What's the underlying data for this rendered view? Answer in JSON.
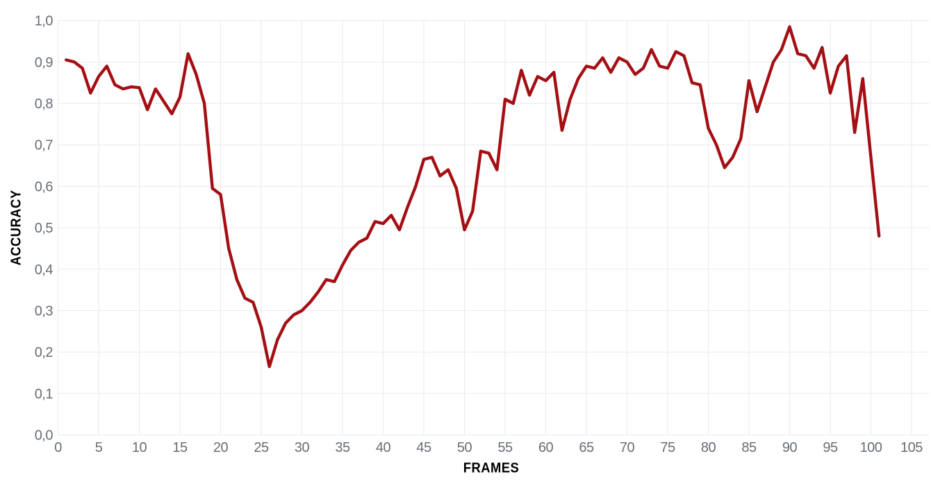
{
  "chart_data": {
    "type": "line",
    "title": "",
    "xlabel": "FRAMES",
    "ylabel": "ACCURACY",
    "xlim": [
      0,
      105
    ],
    "ylim": [
      0.0,
      1.0
    ],
    "grid": true,
    "legend": "none",
    "decimal_separator": ",",
    "x_ticks": [
      0,
      5,
      10,
      15,
      20,
      25,
      30,
      35,
      40,
      45,
      50,
      55,
      60,
      65,
      70,
      75,
      80,
      85,
      90,
      95,
      100,
      105
    ],
    "y_tick_values": [
      0.0,
      0.1,
      0.2,
      0.3,
      0.4,
      0.5,
      0.6,
      0.7,
      0.8,
      0.9,
      1.0
    ],
    "y_tick_labels": [
      "0,0",
      "0,1",
      "0,2",
      "0,3",
      "0,4",
      "0,5",
      "0,6",
      "0,7",
      "0,8",
      "0,9",
      "1,0"
    ],
    "x": [
      1,
      2,
      3,
      4,
      5,
      6,
      7,
      8,
      9,
      10,
      11,
      12,
      13,
      14,
      15,
      16,
      17,
      18,
      19,
      20,
      21,
      22,
      23,
      24,
      25,
      26,
      27,
      28,
      29,
      30,
      31,
      32,
      33,
      34,
      35,
      36,
      37,
      38,
      39,
      40,
      41,
      42,
      43,
      44,
      45,
      46,
      47,
      48,
      49,
      50,
      51,
      52,
      53,
      54,
      55,
      56,
      57,
      58,
      59,
      60,
      61,
      62,
      63,
      64,
      65,
      66,
      67,
      68,
      69,
      70,
      71,
      72,
      73,
      74,
      75,
      76,
      77,
      78,
      79,
      80,
      81,
      82,
      83,
      84,
      85,
      86,
      87,
      88,
      89,
      90,
      91,
      92,
      93,
      94,
      95,
      96,
      97,
      98,
      99,
      100,
      101
    ],
    "values": [
      0.905,
      0.9,
      0.885,
      0.825,
      0.865,
      0.89,
      0.845,
      0.835,
      0.84,
      0.838,
      0.785,
      0.835,
      0.805,
      0.775,
      0.815,
      0.92,
      0.87,
      0.8,
      0.595,
      0.58,
      0.45,
      0.375,
      0.33,
      0.32,
      0.26,
      0.165,
      0.23,
      0.27,
      0.29,
      0.3,
      0.32,
      0.345,
      0.375,
      0.37,
      0.41,
      0.445,
      0.465,
      0.475,
      0.515,
      0.51,
      0.53,
      0.495,
      0.55,
      0.6,
      0.665,
      0.67,
      0.625,
      0.64,
      0.595,
      0.495,
      0.54,
      0.685,
      0.68,
      0.64,
      0.81,
      0.8,
      0.88,
      0.82,
      0.865,
      0.855,
      0.875,
      0.735,
      0.81,
      0.86,
      0.89,
      0.885,
      0.91,
      0.875,
      0.91,
      0.9,
      0.87,
      0.885,
      0.93,
      0.89,
      0.885,
      0.925,
      0.915,
      0.85,
      0.845,
      0.74,
      0.7,
      0.645,
      0.67,
      0.715,
      0.855,
      0.78,
      0.84,
      0.9,
      0.93,
      0.985,
      0.92,
      0.915,
      0.885,
      0.935,
      0.825,
      0.89,
      0.915,
      0.73,
      0.86,
      0.67,
      0.48
    ],
    "line_color": "#a40f14",
    "grid_color": "#eaeaea",
    "tick_color": "#676d75",
    "axis_title_color": "#363c43",
    "background_color": "#ffffff"
  }
}
